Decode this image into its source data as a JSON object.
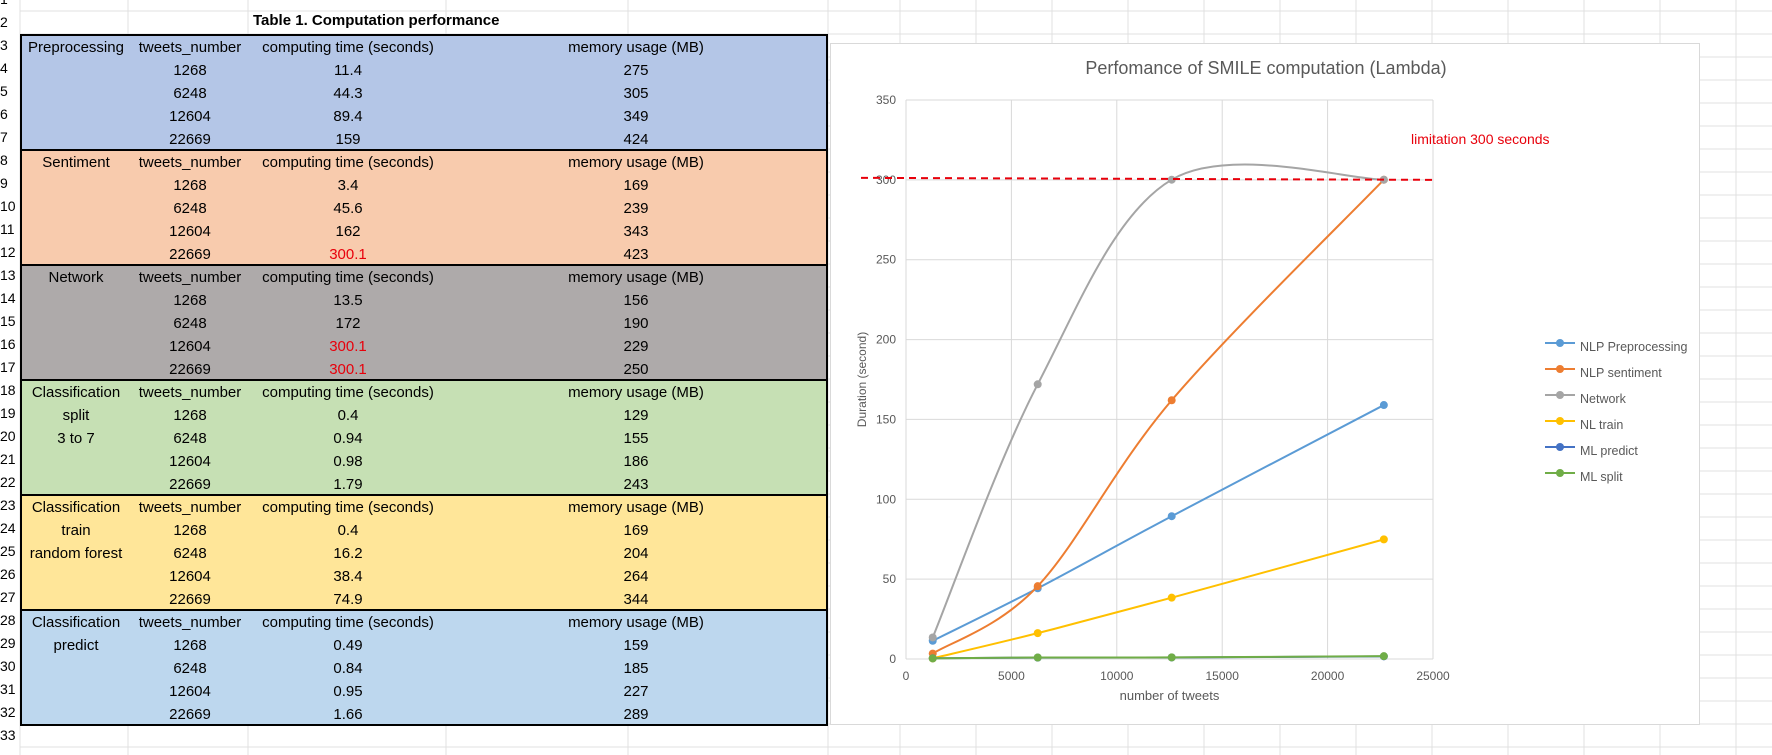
{
  "row_numbers": [
    "1",
    "2",
    "3",
    "4",
    "5",
    "6",
    "7",
    "8",
    "9",
    "10",
    "11",
    "12",
    "13",
    "14",
    "15",
    "16",
    "17",
    "18",
    "19",
    "20",
    "21",
    "22",
    "23",
    "24",
    "25",
    "26",
    "27",
    "28",
    "29",
    "30",
    "31",
    "32",
    "33"
  ],
  "table": {
    "title": "Table 1. Computation performance",
    "sections": [
      {
        "key": "preprocessing",
        "bg": "#b4c6e7",
        "labels": [
          "Preprocessing"
        ],
        "headers": [
          "tweets_number",
          "computing time (seconds)",
          "memory usage (MB)"
        ],
        "rows": [
          {
            "tweets": "1268",
            "time": "11.4",
            "memory": "275",
            "over": false
          },
          {
            "tweets": "6248",
            "time": "44.3",
            "memory": "305",
            "over": false
          },
          {
            "tweets": "12604",
            "time": "89.4",
            "memory": "349",
            "over": false
          },
          {
            "tweets": "22669",
            "time": "159",
            "memory": "424",
            "over": false
          }
        ]
      },
      {
        "key": "sentiment",
        "bg": "#f8cbad",
        "labels": [
          "Sentiment"
        ],
        "headers": [
          "tweets_number",
          "computing time (seconds)",
          "memory usage (MB)"
        ],
        "rows": [
          {
            "tweets": "1268",
            "time": "3.4",
            "memory": "169",
            "over": false
          },
          {
            "tweets": "6248",
            "time": "45.6",
            "memory": "239",
            "over": false
          },
          {
            "tweets": "12604",
            "time": "162",
            "memory": "343",
            "over": false
          },
          {
            "tweets": "22669",
            "time": "300.1",
            "memory": "423",
            "over": true
          }
        ]
      },
      {
        "key": "network",
        "bg": "#aeaaaa",
        "labels": [
          "Network"
        ],
        "headers": [
          "tweets_number",
          "computing time (seconds)",
          "memory usage (MB)"
        ],
        "rows": [
          {
            "tweets": "1268",
            "time": "13.5",
            "memory": "156",
            "over": false
          },
          {
            "tweets": "6248",
            "time": "172",
            "memory": "190",
            "over": false
          },
          {
            "tweets": "12604",
            "time": "300.1",
            "memory": "229",
            "over": true
          },
          {
            "tweets": "22669",
            "time": "300.1",
            "memory": "250",
            "over": true
          }
        ]
      },
      {
        "key": "classification-split",
        "bg": "#c6e0b4",
        "labels": [
          "Classification",
          "split",
          "3 to 7"
        ],
        "headers": [
          "tweets_number",
          "computing time (seconds)",
          "memory usage (MB)"
        ],
        "rows": [
          {
            "tweets": "1268",
            "time": "0.4",
            "memory": "129",
            "over": false
          },
          {
            "tweets": "6248",
            "time": "0.94",
            "memory": "155",
            "over": false
          },
          {
            "tweets": "12604",
            "time": "0.98",
            "memory": "186",
            "over": false
          },
          {
            "tweets": "22669",
            "time": "1.79",
            "memory": "243",
            "over": false
          }
        ]
      },
      {
        "key": "classification-train",
        "bg": "#ffe699",
        "labels": [
          "Classification",
          "train",
          "random forest"
        ],
        "headers": [
          "tweets_number",
          "computing time (seconds)",
          "memory usage (MB)"
        ],
        "rows": [
          {
            "tweets": "1268",
            "time": "0.4",
            "memory": "169",
            "over": false
          },
          {
            "tweets": "6248",
            "time": "16.2",
            "memory": "204",
            "over": false
          },
          {
            "tweets": "12604",
            "time": "38.4",
            "memory": "264",
            "over": false
          },
          {
            "tweets": "22669",
            "time": "74.9",
            "memory": "344",
            "over": false
          }
        ]
      },
      {
        "key": "classification-predict",
        "bg": "#bdd7ee",
        "labels": [
          "Classification",
          "predict"
        ],
        "headers": [
          "tweets_number",
          "computing time (seconds)",
          "memory usage (MB)"
        ],
        "rows": [
          {
            "tweets": "1268",
            "time": "0.49",
            "memory": "159",
            "over": false
          },
          {
            "tweets": "6248",
            "time": "0.84",
            "memory": "185",
            "over": false
          },
          {
            "tweets": "12604",
            "time": "0.95",
            "memory": "227",
            "over": false
          },
          {
            "tweets": "22669",
            "time": "1.66",
            "memory": "289",
            "over": false
          }
        ]
      }
    ]
  },
  "colors": {
    "over_limit_text": "#e8000b",
    "limit_line": "#e8000b",
    "grid_line": "#d9d9d9",
    "axis_text": "#595959"
  },
  "chart_data": {
    "type": "line",
    "title": "Perfomance of SMILE computation (Lambda)",
    "xlabel": "number of tweets",
    "ylabel": "Duration (second)",
    "xlim": [
      0,
      25000
    ],
    "ylim": [
      0,
      350
    ],
    "x_ticks": [
      0,
      5000,
      10000,
      15000,
      20000,
      25000
    ],
    "y_ticks": [
      0,
      50,
      100,
      150,
      200,
      250,
      300,
      350
    ],
    "grid": true,
    "legend_position": "right",
    "smooth": true,
    "x": [
      1268,
      6248,
      12604,
      22669
    ],
    "series": [
      {
        "name": "NLP Preprocessing",
        "color": "#5b9bd5",
        "values": [
          11.4,
          44.3,
          89.4,
          159
        ]
      },
      {
        "name": "NLP sentiment",
        "color": "#ed7d31",
        "values": [
          3.4,
          45.6,
          162,
          300.1
        ]
      },
      {
        "name": "Network",
        "color": "#a5a5a5",
        "values": [
          13.5,
          172,
          300.1,
          300.1
        ]
      },
      {
        "name": "NL train",
        "color": "#ffc000",
        "values": [
          0.4,
          16.2,
          38.4,
          74.9
        ]
      },
      {
        "name": "ML predict",
        "color": "#4472c4",
        "values": [
          0.49,
          0.84,
          0.95,
          1.66
        ]
      },
      {
        "name": "ML split",
        "color": "#70ad47",
        "values": [
          0.4,
          0.94,
          0.98,
          1.79
        ]
      }
    ],
    "limit": {
      "value": 300,
      "label": "limitation 300 seconds"
    }
  }
}
